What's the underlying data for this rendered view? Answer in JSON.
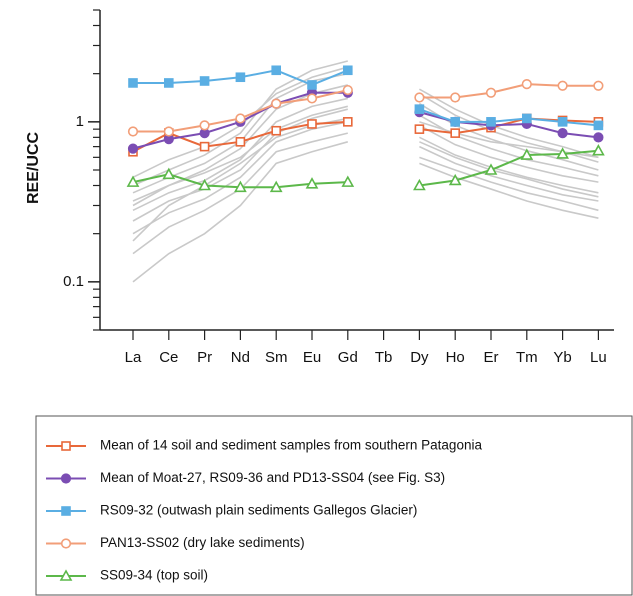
{
  "chart_data": {
    "type": "line",
    "y_label": "REE/UCC",
    "categories": [
      "La",
      "Ce",
      "Pr",
      "Nd",
      "Sm",
      "Eu",
      "Gd",
      "Tb",
      "Dy",
      "Ho",
      "Er",
      "Tm",
      "Yb",
      "Lu"
    ],
    "log_y": true,
    "ylim": [
      0.05,
      5
    ],
    "yticks": [
      0.1,
      1
    ],
    "yminorticks": [
      0.05,
      0.06,
      0.07,
      0.08,
      0.09,
      0.2,
      0.3,
      0.4,
      0.5,
      0.6,
      0.7,
      0.8,
      0.9,
      2,
      3,
      4,
      5
    ],
    "series": [
      {
        "color": "#c9c9c9",
        "values": [
          0.1,
          0.15,
          0.2,
          0.3,
          0.55,
          0.65,
          0.75,
          null,
          0.55,
          0.45,
          0.38,
          0.32,
          0.28,
          0.25
        ]
      },
      {
        "color": "#c9c9c9",
        "values": [
          0.15,
          0.22,
          0.28,
          0.38,
          0.65,
          0.75,
          0.85,
          null,
          0.6,
          0.5,
          0.42,
          0.36,
          0.32,
          0.28
        ]
      },
      {
        "color": "#c9c9c9",
        "values": [
          0.2,
          0.27,
          0.33,
          0.45,
          0.75,
          0.9,
          1.0,
          null,
          0.7,
          0.55,
          0.46,
          0.4,
          0.35,
          0.32
        ]
      },
      {
        "color": "#c9c9c9",
        "values": [
          0.24,
          0.32,
          0.38,
          0.5,
          0.85,
          1.05,
          1.2,
          null,
          0.8,
          0.62,
          0.52,
          0.45,
          0.4,
          0.36
        ]
      },
      {
        "color": "#c9c9c9",
        "values": [
          0.28,
          0.36,
          0.43,
          0.58,
          1.0,
          1.25,
          1.4,
          null,
          0.95,
          0.72,
          0.6,
          0.52,
          0.46,
          0.42
        ]
      },
      {
        "color": "#c9c9c9",
        "values": [
          0.32,
          0.4,
          0.5,
          0.68,
          1.2,
          1.5,
          1.7,
          null,
          1.1,
          0.82,
          0.68,
          0.58,
          0.52,
          0.46
        ]
      },
      {
        "color": "#c9c9c9",
        "values": [
          0.36,
          0.45,
          0.55,
          0.75,
          1.4,
          1.8,
          2.0,
          null,
          1.3,
          0.95,
          0.78,
          0.66,
          0.58,
          0.5
        ]
      },
      {
        "color": "#c9c9c9",
        "values": [
          0.4,
          0.5,
          0.62,
          0.85,
          1.6,
          2.1,
          2.4,
          null,
          1.5,
          1.1,
          0.88,
          0.74,
          0.65,
          0.56
        ]
      },
      {
        "color": "#c9c9c9",
        "values": [
          0.45,
          0.58,
          0.7,
          0.95,
          1.5,
          1.9,
          2.2,
          null,
          1.6,
          1.2,
          0.95,
          0.8,
          0.7,
          0.6
        ]
      },
      {
        "color": "#c9c9c9",
        "values": [
          0.3,
          0.4,
          0.48,
          0.6,
          0.9,
          1.1,
          1.25,
          null,
          1.0,
          0.85,
          0.75,
          0.7,
          0.65,
          0.6
        ]
      },
      {
        "color": "#c9c9c9",
        "values": [
          0.18,
          0.3,
          0.4,
          0.55,
          0.8,
          0.95,
          1.05,
          null,
          0.75,
          0.6,
          0.5,
          0.44,
          0.38,
          0.34
        ]
      },
      {
        "name": "Mean of 14 soil and sediment samples from southern Patagonia",
        "color": "#e8683a",
        "marker": "square",
        "filled": false,
        "values": [
          0.65,
          0.85,
          0.7,
          0.75,
          0.88,
          0.97,
          1.0,
          null,
          0.9,
          0.85,
          0.92,
          1.05,
          1.02,
          1.0
        ]
      },
      {
        "name": "Mean of Moat-27, RS09-36 and PD13-SS04 (see Fig. S3)",
        "color": "#7b4db3",
        "marker": "circle",
        "filled": true,
        "values": [
          0.68,
          0.78,
          0.85,
          1.0,
          1.3,
          1.52,
          1.52,
          null,
          1.15,
          1.0,
          0.95,
          0.97,
          0.85,
          0.8
        ]
      },
      {
        "name": "RS09-32 (outwash plain sediments Gallegos Glacier)",
        "color": "#5aaee3",
        "marker": "square",
        "filled": true,
        "values": [
          1.75,
          1.75,
          1.8,
          1.9,
          2.1,
          1.7,
          2.1,
          null,
          1.2,
          1.0,
          1.0,
          1.05,
          1.0,
          0.95
        ]
      },
      {
        "name": "PAN13-SS02  (dry lake sediments)",
        "color": "#f29e78",
        "marker": "circle",
        "filled": false,
        "values": [
          0.87,
          0.87,
          0.95,
          1.05,
          1.3,
          1.4,
          1.58,
          null,
          1.42,
          1.42,
          1.52,
          1.72,
          1.68,
          1.68
        ]
      },
      {
        "name": "SS09-34 (top soil)",
        "color": "#5cb84a",
        "marker": "triangle",
        "filled": false,
        "values": [
          0.42,
          0.47,
          0.4,
          0.39,
          0.39,
          0.41,
          0.42,
          null,
          0.4,
          0.43,
          0.5,
          0.62,
          0.63,
          0.66
        ]
      }
    ]
  }
}
